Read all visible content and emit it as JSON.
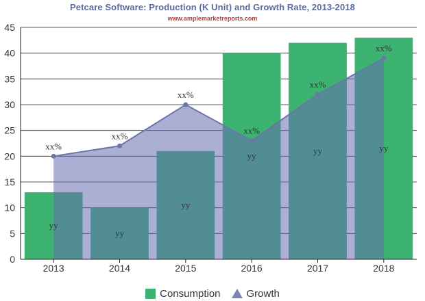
{
  "chart_data": {
    "type": "bar",
    "title": "Petcare Software: Production (K Unit) and Growth Rate, 2013-2018",
    "subtitle": "www.amplemarketreports.com",
    "categories": [
      "2013",
      "2014",
      "2015",
      "2016",
      "2017",
      "2018"
    ],
    "ylim": [
      0,
      45
    ],
    "yticks": [
      0,
      5,
      10,
      15,
      20,
      25,
      30,
      35,
      40,
      45
    ],
    "grid": true,
    "legend_position": "bottom",
    "series": [
      {
        "name": "Consumption",
        "type": "bar",
        "color": "#3cb371",
        "values": [
          13,
          10,
          21,
          40,
          42,
          43
        ],
        "labels": [
          "yy",
          "yy",
          "yy",
          "yy",
          "yy",
          "yy"
        ]
      },
      {
        "name": "Growth",
        "type": "area",
        "color": "#7b84b6",
        "values": [
          20,
          22,
          30,
          23,
          32,
          39
        ],
        "labels": [
          "xx%",
          "xx%",
          "xx%",
          "xx%",
          "xx%",
          "xx%"
        ]
      }
    ]
  }
}
